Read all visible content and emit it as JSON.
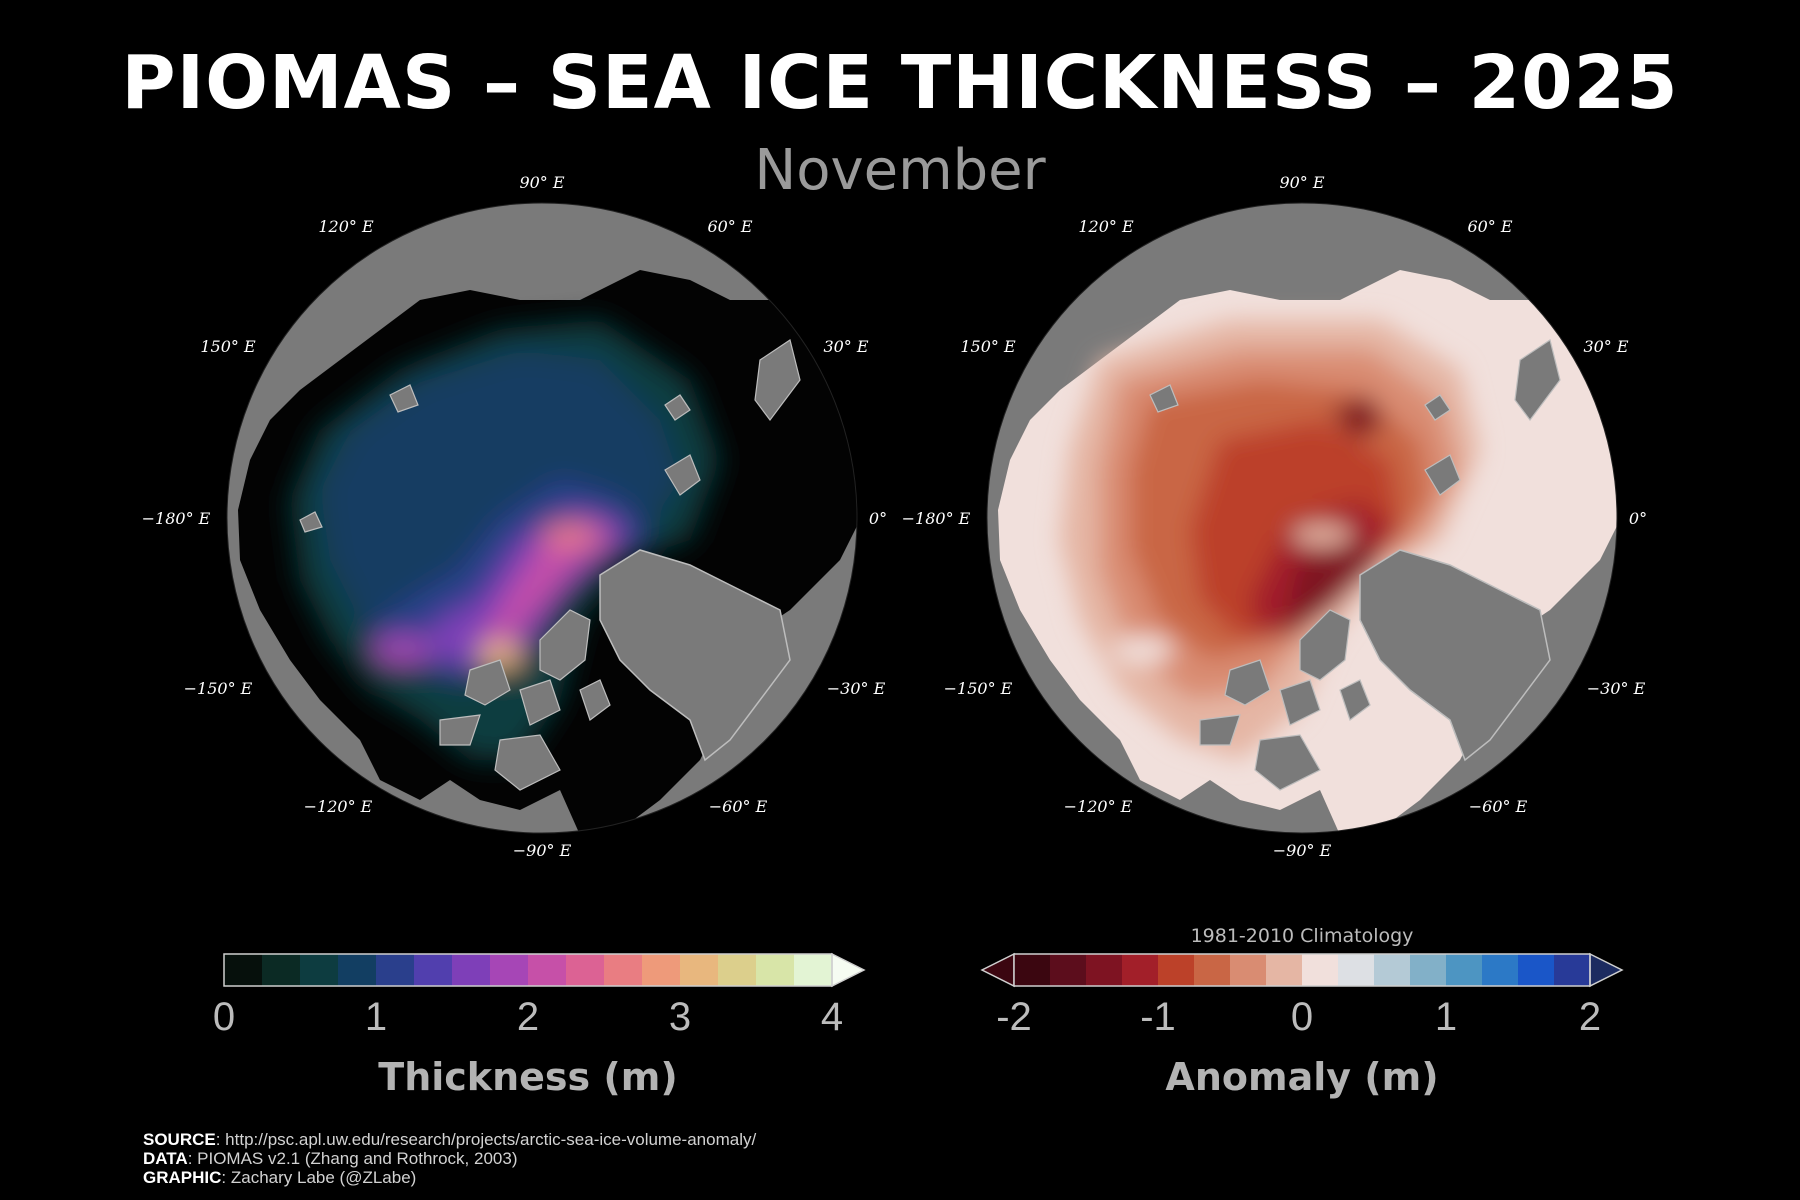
{
  "title": "PIOMAS – SEA ICE THICKNESS – 2025",
  "subtitle": "November",
  "longitude_labels": {
    "deg90": "90° E",
    "deg120": "120° E",
    "deg60": "60° E",
    "deg150": "150° E",
    "deg30": "30° E",
    "deg180": "−180° E",
    "deg0": "0°",
    "deg_m150": "−150° E",
    "deg_m30": "−30° E",
    "deg_m120": "−120° E",
    "deg_m60": "−60° E",
    "deg_m90": "−90° E"
  },
  "colors": {
    "background": "#000000",
    "land": "#7a7a7a",
    "ocean": "#030303",
    "thickness_scale": [
      "#06100c",
      "#0b2a24",
      "#0d3c40",
      "#123e62",
      "#2a3f8c",
      "#513fae",
      "#7e3fb8",
      "#a646b6",
      "#c650a8",
      "#dc6294",
      "#e97d82",
      "#ee9a7a",
      "#e8b77e",
      "#dccf8c",
      "#d8e5a8",
      "#e3f4d4",
      "#f6fcf2"
    ],
    "anomaly_scale": [
      "#3b0610",
      "#5c0d1c",
      "#7e1322",
      "#a21f29",
      "#bc4129",
      "#c96645",
      "#d98c72",
      "#e5b6a4",
      "#f1e0dc",
      "#dde0e4",
      "#b4cad6",
      "#82b0c8",
      "#4d95c2",
      "#2c79c6",
      "#1a56c8",
      "#283a98",
      "#1c2b60"
    ]
  },
  "colorbar_thickness": {
    "ticks": [
      "0",
      "1",
      "2",
      "3",
      "4"
    ],
    "label": "Thickness (m)",
    "min": 0,
    "max": 4,
    "step": 0.25
  },
  "colorbar_anomaly": {
    "ticks": [
      "-2",
      "-1",
      "0",
      "1",
      "2"
    ],
    "label": "Anomaly (m)",
    "climatology": "1981-2010 Climatology",
    "min": -2,
    "max": 2,
    "step": 0.25
  },
  "credits": {
    "source_label": "SOURCE",
    "source_text": ": http://psc.apl.uw.edu/research/projects/arctic-sea-ice-volume-anomaly/",
    "data_label": "DATA",
    "data_text": ": PIOMAS v2.1 (Zhang and Rothrock, 2003)",
    "graphic_label": "GRAPHIC",
    "graphic_text": ": Zachary Labe (@ZLabe)"
  }
}
